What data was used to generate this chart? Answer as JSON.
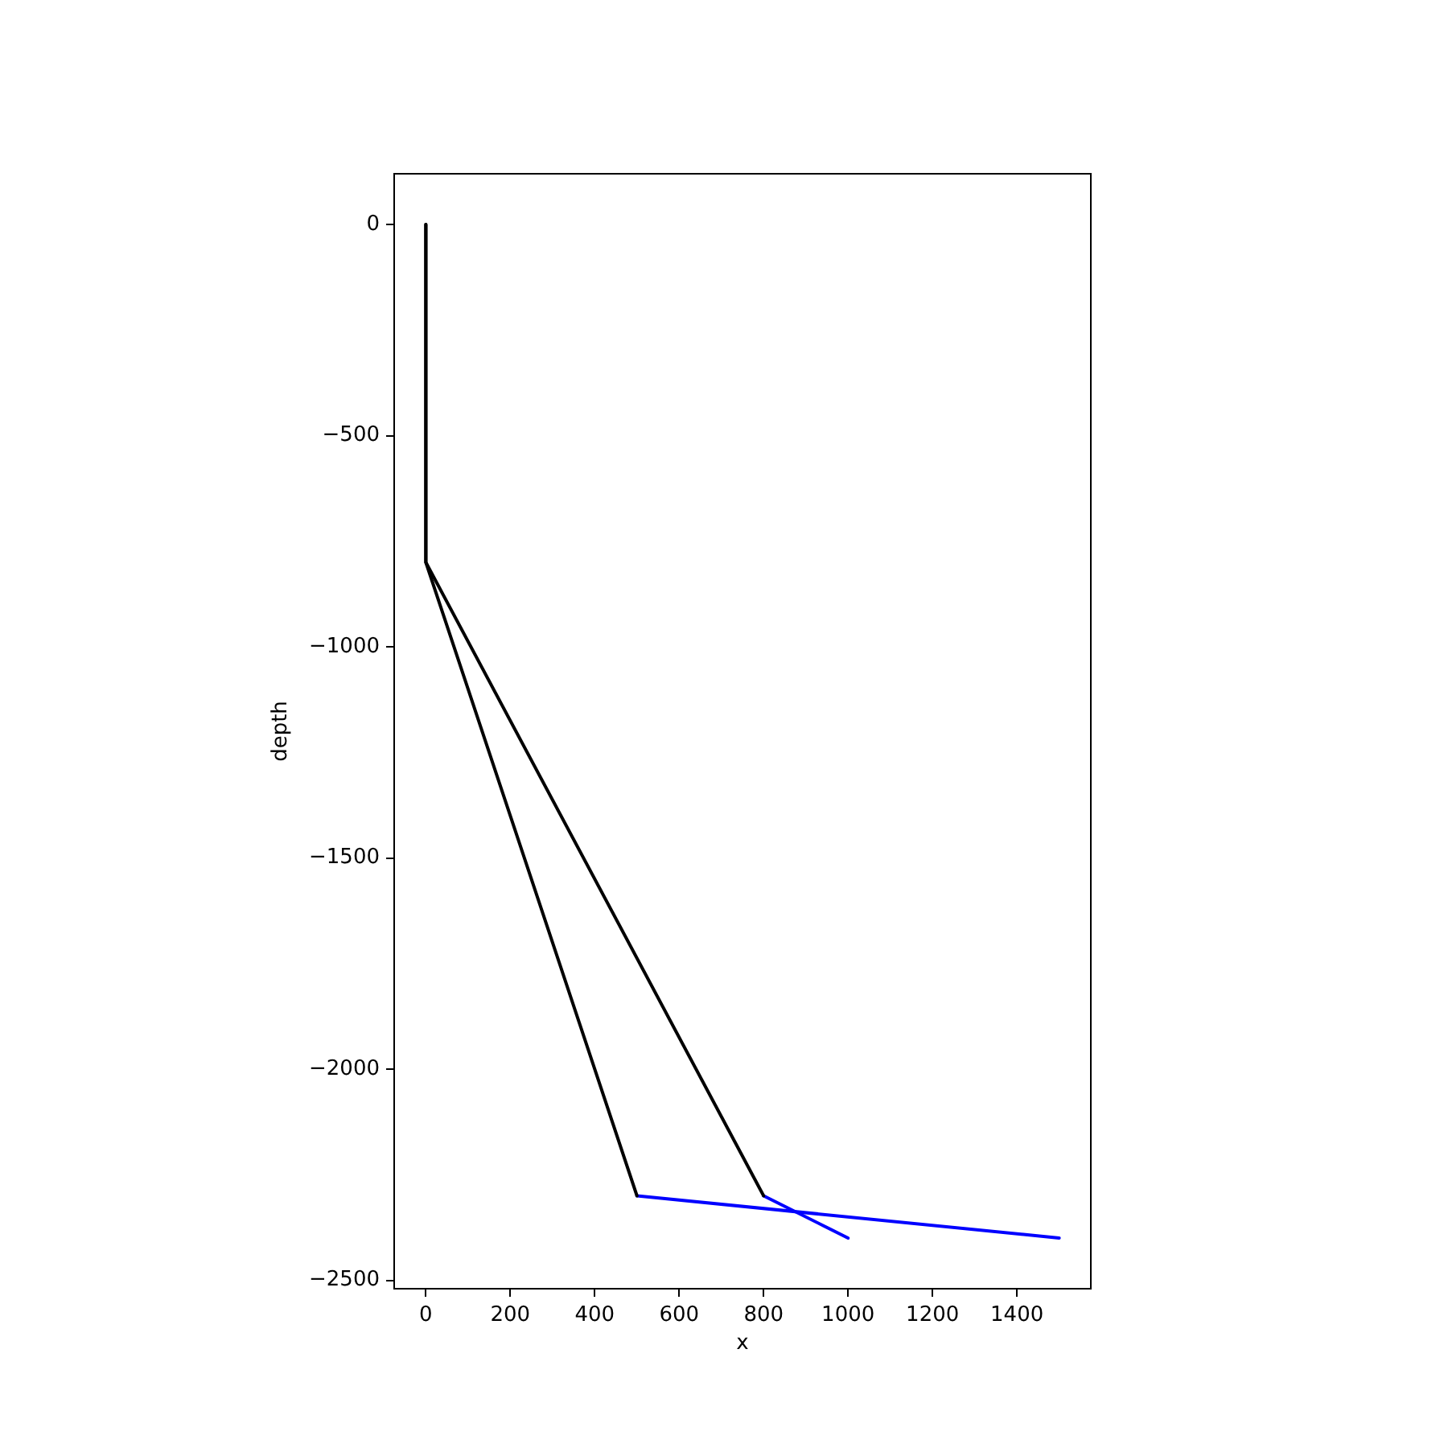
{
  "chart_data": {
    "type": "line",
    "xlabel": "x",
    "ylabel": "depth",
    "marker": "none",
    "line_style": "solid",
    "series": [
      {
        "color": "#000000",
        "x": [
          0,
          0,
          500
        ],
        "values": [
          0,
          -800,
          -2300
        ]
      },
      {
        "color": "#000000",
        "x": [
          0,
          0,
          800
        ],
        "values": [
          0,
          -800,
          -2300
        ]
      },
      {
        "color": "#0000ff",
        "x": [
          500,
          1500
        ],
        "values": [
          -2300,
          -2400
        ]
      },
      {
        "color": "#0000ff",
        "x": [
          800,
          1000
        ],
        "values": [
          -2300,
          -2400
        ]
      }
    ],
    "xlim": [
      -75,
      1575
    ],
    "xticks": [
      0,
      200,
      400,
      600,
      800,
      1000,
      1200,
      1400
    ],
    "ylim": [
      -2520,
      120
    ],
    "yticks": [
      {
        "value": -2500,
        "label": "−2500"
      },
      {
        "value": -2000,
        "label": "−2000"
      },
      {
        "value": -1500,
        "label": "−1500"
      },
      {
        "value": -1000,
        "label": "−1000"
      },
      {
        "value": -500,
        "label": "−500"
      },
      0
    ]
  }
}
